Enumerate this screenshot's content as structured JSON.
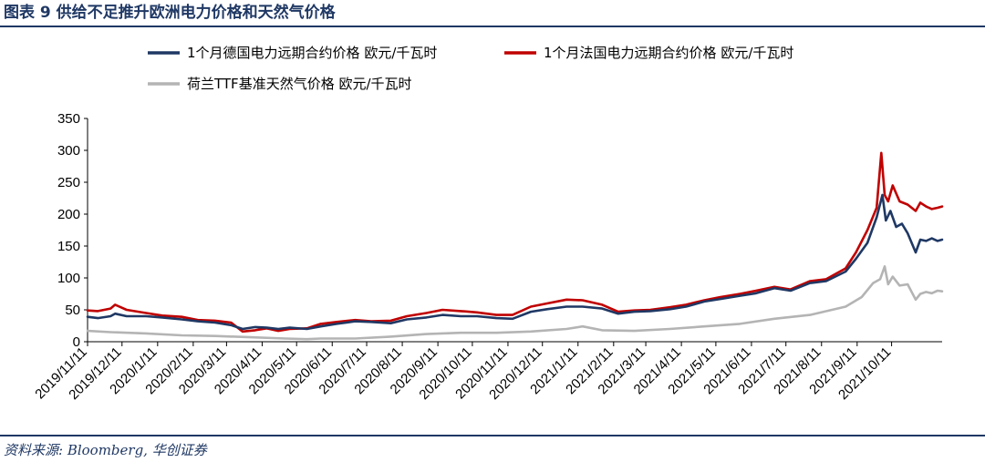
{
  "header": {
    "title": "图表 9  供给不足推升欧洲电力价格和天然气价格"
  },
  "footer": {
    "source": "资料来源: Bloomberg, 华创证券"
  },
  "chart_data": {
    "type": "line",
    "title": "",
    "xlabel": "",
    "ylabel": "",
    "ylim": [
      0,
      350
    ],
    "yticks": [
      0,
      50,
      100,
      150,
      200,
      250,
      300,
      350
    ],
    "xlim": [
      "2019-11-11",
      "2021-11-24"
    ],
    "xticks": [
      "2019/11/11",
      "2019/12/11",
      "2020/1/11",
      "2020/2/11",
      "2020/3/11",
      "2020/4/11",
      "2020/5/11",
      "2020/6/11",
      "2020/7/11",
      "2020/8/11",
      "2020/9/11",
      "2020/10/11",
      "2020/11/11",
      "2020/12/11",
      "2021/1/11",
      "2021/2/11",
      "2021/3/11",
      "2021/4/11",
      "2021/5/11",
      "2021/6/11",
      "2021/7/11",
      "2021/8/11",
      "2021/9/11",
      "2021/10/11"
    ],
    "grid": false,
    "legend": "top",
    "series": [
      {
        "name": "1个月德国电力远期合约价格 欧元/千瓦时",
        "color": "#1f3864",
        "points": [
          [
            "2019-11-11",
            39
          ],
          [
            "2019-11-20",
            37
          ],
          [
            "2019-12-01",
            40
          ],
          [
            "2019-12-05",
            44
          ],
          [
            "2019-12-15",
            40
          ],
          [
            "2020-01-01",
            40
          ],
          [
            "2020-01-15",
            38
          ],
          [
            "2020-02-01",
            35
          ],
          [
            "2020-02-15",
            32
          ],
          [
            "2020-03-01",
            30
          ],
          [
            "2020-03-15",
            26
          ],
          [
            "2020-03-25",
            20
          ],
          [
            "2020-04-05",
            23
          ],
          [
            "2020-04-15",
            22
          ],
          [
            "2020-04-25",
            20
          ],
          [
            "2020-05-05",
            22
          ],
          [
            "2020-05-20",
            20
          ],
          [
            "2020-06-01",
            24
          ],
          [
            "2020-06-15",
            28
          ],
          [
            "2020-07-01",
            32
          ],
          [
            "2020-07-15",
            31
          ],
          [
            "2020-08-01",
            29
          ],
          [
            "2020-08-15",
            35
          ],
          [
            "2020-09-01",
            38
          ],
          [
            "2020-09-15",
            42
          ],
          [
            "2020-10-01",
            40
          ],
          [
            "2020-10-15",
            40
          ],
          [
            "2020-11-01",
            37
          ],
          [
            "2020-11-15",
            36
          ],
          [
            "2020-12-01",
            47
          ],
          [
            "2020-12-15",
            51
          ],
          [
            "2021-01-01",
            55
          ],
          [
            "2021-01-15",
            55
          ],
          [
            "2021-02-01",
            52
          ],
          [
            "2021-02-15",
            44
          ],
          [
            "2021-03-01",
            47
          ],
          [
            "2021-03-15",
            48
          ],
          [
            "2021-04-01",
            51
          ],
          [
            "2021-04-15",
            55
          ],
          [
            "2021-05-01",
            63
          ],
          [
            "2021-05-15",
            67
          ],
          [
            "2021-06-01",
            72
          ],
          [
            "2021-06-15",
            76
          ],
          [
            "2021-07-01",
            84
          ],
          [
            "2021-07-15",
            80
          ],
          [
            "2021-08-01",
            92
          ],
          [
            "2021-08-15",
            95
          ],
          [
            "2021-09-01",
            110
          ],
          [
            "2021-09-10",
            130
          ],
          [
            "2021-09-20",
            155
          ],
          [
            "2021-09-28",
            195
          ],
          [
            "2021-10-03",
            230
          ],
          [
            "2021-10-06",
            190
          ],
          [
            "2021-10-10",
            205
          ],
          [
            "2021-10-15",
            180
          ],
          [
            "2021-10-20",
            185
          ],
          [
            "2021-10-25",
            170
          ],
          [
            "2021-11-01",
            140
          ],
          [
            "2021-11-05",
            160
          ],
          [
            "2021-11-10",
            158
          ],
          [
            "2021-11-15",
            162
          ],
          [
            "2021-11-20",
            158
          ],
          [
            "2021-11-24",
            160
          ]
        ]
      },
      {
        "name": "1个月法国电力远期合约价格 欧元/千瓦时",
        "color": "#c00000",
        "points": [
          [
            "2019-11-11",
            49
          ],
          [
            "2019-11-20",
            48
          ],
          [
            "2019-12-01",
            52
          ],
          [
            "2019-12-05",
            58
          ],
          [
            "2019-12-15",
            50
          ],
          [
            "2020-01-01",
            45
          ],
          [
            "2020-01-15",
            41
          ],
          [
            "2020-02-01",
            39
          ],
          [
            "2020-02-15",
            34
          ],
          [
            "2020-03-01",
            33
          ],
          [
            "2020-03-15",
            30
          ],
          [
            "2020-03-25",
            16
          ],
          [
            "2020-04-05",
            18
          ],
          [
            "2020-04-15",
            21
          ],
          [
            "2020-04-25",
            17
          ],
          [
            "2020-05-05",
            20
          ],
          [
            "2020-05-20",
            21
          ],
          [
            "2020-06-01",
            28
          ],
          [
            "2020-06-15",
            31
          ],
          [
            "2020-07-01",
            34
          ],
          [
            "2020-07-15",
            32
          ],
          [
            "2020-08-01",
            33
          ],
          [
            "2020-08-15",
            40
          ],
          [
            "2020-09-01",
            45
          ],
          [
            "2020-09-15",
            50
          ],
          [
            "2020-10-01",
            48
          ],
          [
            "2020-10-15",
            46
          ],
          [
            "2020-11-01",
            42
          ],
          [
            "2020-11-15",
            42
          ],
          [
            "2020-12-01",
            55
          ],
          [
            "2020-12-15",
            60
          ],
          [
            "2021-01-01",
            66
          ],
          [
            "2021-01-15",
            65
          ],
          [
            "2021-02-01",
            58
          ],
          [
            "2021-02-15",
            47
          ],
          [
            "2021-03-01",
            49
          ],
          [
            "2021-03-15",
            50
          ],
          [
            "2021-04-01",
            54
          ],
          [
            "2021-04-15",
            58
          ],
          [
            "2021-05-01",
            65
          ],
          [
            "2021-05-15",
            70
          ],
          [
            "2021-06-01",
            75
          ],
          [
            "2021-06-15",
            80
          ],
          [
            "2021-07-01",
            86
          ],
          [
            "2021-07-15",
            82
          ],
          [
            "2021-08-01",
            95
          ],
          [
            "2021-08-15",
            98
          ],
          [
            "2021-09-01",
            115
          ],
          [
            "2021-09-10",
            140
          ],
          [
            "2021-09-20",
            175
          ],
          [
            "2021-09-28",
            210
          ],
          [
            "2021-10-02",
            296
          ],
          [
            "2021-10-05",
            230
          ],
          [
            "2021-10-08",
            220
          ],
          [
            "2021-10-12",
            245
          ],
          [
            "2021-10-18",
            220
          ],
          [
            "2021-10-25",
            215
          ],
          [
            "2021-11-01",
            205
          ],
          [
            "2021-11-05",
            218
          ],
          [
            "2021-11-10",
            212
          ],
          [
            "2021-11-15",
            208
          ],
          [
            "2021-11-20",
            210
          ],
          [
            "2021-11-24",
            212
          ]
        ]
      },
      {
        "name": "荷兰TTF基准天然气价格 欧元/千瓦时",
        "color": "#b4b4b4",
        "points": [
          [
            "2019-11-11",
            17
          ],
          [
            "2019-12-01",
            15
          ],
          [
            "2020-01-01",
            13
          ],
          [
            "2020-02-01",
            10
          ],
          [
            "2020-03-01",
            9
          ],
          [
            "2020-04-01",
            7
          ],
          [
            "2020-05-01",
            5
          ],
          [
            "2020-05-20",
            4
          ],
          [
            "2020-06-01",
            5
          ],
          [
            "2020-07-01",
            5
          ],
          [
            "2020-08-01",
            8
          ],
          [
            "2020-09-01",
            12
          ],
          [
            "2020-10-01",
            14
          ],
          [
            "2020-11-01",
            14
          ],
          [
            "2020-12-01",
            16
          ],
          [
            "2021-01-01",
            20
          ],
          [
            "2021-01-15",
            24
          ],
          [
            "2021-02-01",
            18
          ],
          [
            "2021-03-01",
            17
          ],
          [
            "2021-04-01",
            20
          ],
          [
            "2021-05-01",
            24
          ],
          [
            "2021-06-01",
            28
          ],
          [
            "2021-07-01",
            36
          ],
          [
            "2021-08-01",
            42
          ],
          [
            "2021-09-01",
            55
          ],
          [
            "2021-09-15",
            70
          ],
          [
            "2021-09-25",
            92
          ],
          [
            "2021-10-01",
            98
          ],
          [
            "2021-10-05",
            118
          ],
          [
            "2021-10-08",
            90
          ],
          [
            "2021-10-12",
            102
          ],
          [
            "2021-10-18",
            88
          ],
          [
            "2021-10-25",
            90
          ],
          [
            "2021-11-01",
            66
          ],
          [
            "2021-11-05",
            75
          ],
          [
            "2021-11-10",
            78
          ],
          [
            "2021-11-15",
            76
          ],
          [
            "2021-11-20",
            80
          ],
          [
            "2021-11-24",
            79
          ]
        ]
      }
    ]
  }
}
